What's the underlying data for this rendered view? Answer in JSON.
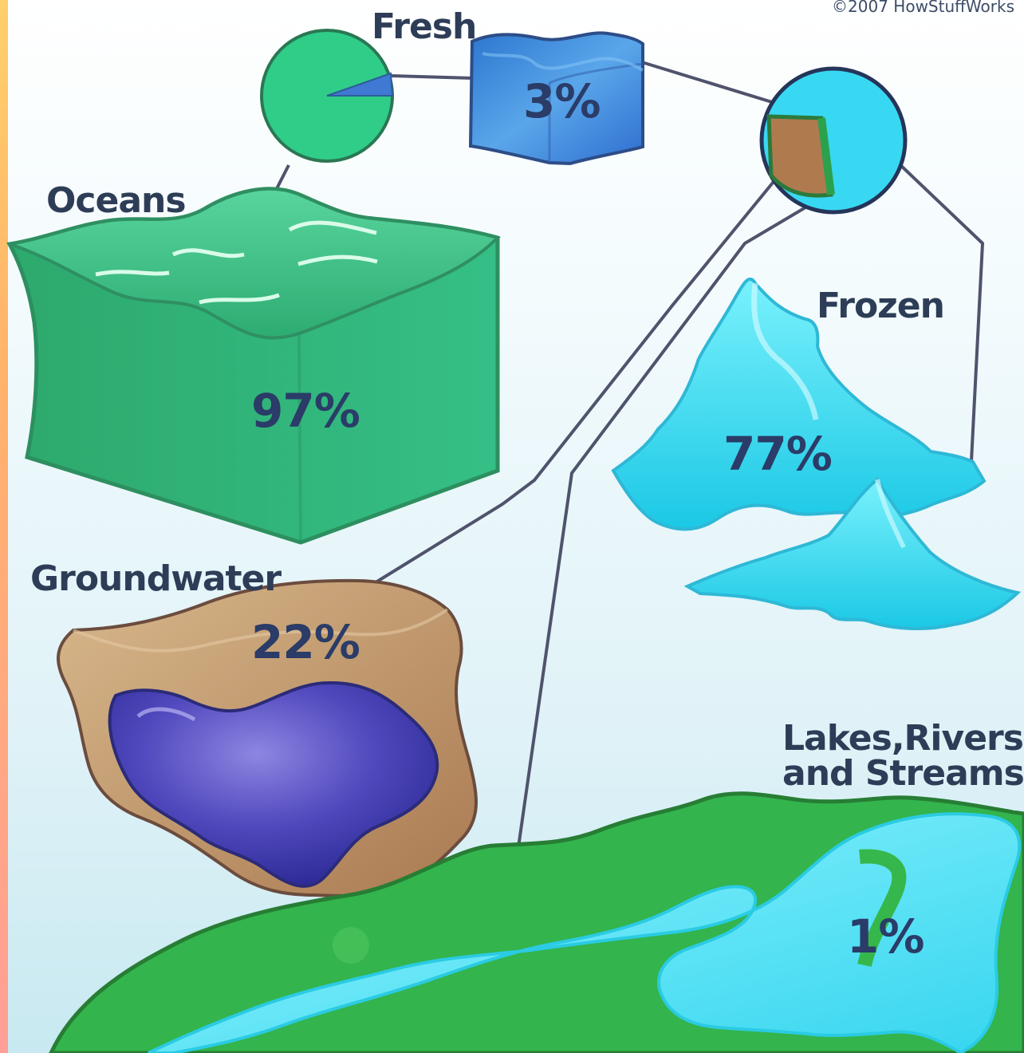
{
  "copyright": "©2007 HowStuffWorks",
  "labels": {
    "fresh": "Fresh",
    "oceans": "Oceans",
    "frozen": "Frozen",
    "groundwater": "Groundwater",
    "lakes_line1": "Lakes,Rivers,",
    "lakes_line2": "and Streams"
  },
  "values": {
    "fresh": "3%",
    "oceans": "97%",
    "frozen": "77%",
    "groundwater": "22%",
    "lakes": "1%"
  },
  "colors": {
    "ocean": "#35bf86",
    "fresh": "#3f83d8",
    "ice": "#39dbf2",
    "ground": "#c9a272",
    "land": "#35b74f",
    "water": "#61e6f7",
    "deep_water": "#4c43b5",
    "line": "#50536c"
  }
}
